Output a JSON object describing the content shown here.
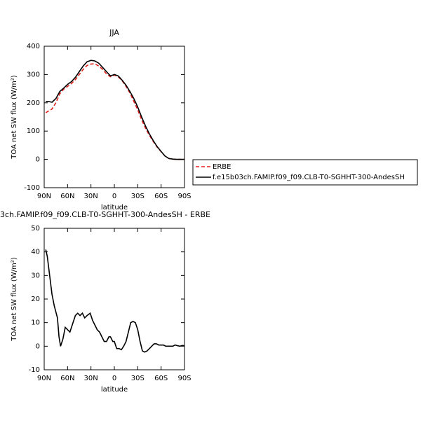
{
  "chart_data": [
    {
      "type": "line",
      "title": "JJA",
      "ylabel": "TOA net SW flux (W/m²)",
      "xlabel": "latitude",
      "x": [
        88,
        85,
        80,
        75,
        70,
        65,
        60,
        55,
        50,
        45,
        40,
        35,
        30,
        25,
        20,
        15,
        10,
        5,
        0,
        -5,
        -10,
        -15,
        -20,
        -25,
        -30,
        -35,
        -40,
        -45,
        -50,
        -55,
        -60,
        -65,
        -70,
        -75,
        -80,
        -85,
        -90
      ],
      "series": [
        {
          "name": "ERBE",
          "color": "#e0201b",
          "linestyle": "dashed",
          "values": [
            165,
            170,
            178,
            200,
            232,
            248,
            258,
            268,
            282,
            300,
            318,
            332,
            337,
            338,
            330,
            318,
            302,
            292,
            298,
            292,
            278,
            258,
            235,
            205,
            175,
            140,
            110,
            85,
            63,
            43,
            27,
            12,
            3,
            1,
            0,
            0,
            0
          ]
        },
        {
          "name": "f.e15b03ch.FAMIP.f09_f09.CLB-T0-SGHHT-300-AndesSH",
          "color": "#000000",
          "linestyle": "solid",
          "values": [
            205,
            205,
            202,
            215,
            240,
            252,
            265,
            275,
            290,
            310,
            330,
            345,
            350,
            348,
            340,
            325,
            310,
            295,
            300,
            295,
            280,
            262,
            240,
            215,
            185,
            150,
            118,
            90,
            66,
            45,
            28,
            12,
            3,
            1,
            0,
            0,
            0
          ]
        }
      ],
      "xlim": [
        90,
        -90
      ],
      "ylim": [
        -100,
        400
      ],
      "xticks": [
        {
          "value": 90,
          "label": "90N"
        },
        {
          "value": 60,
          "label": "60N"
        },
        {
          "value": 30,
          "label": "30N"
        },
        0,
        {
          "value": -30,
          "label": "30S"
        },
        {
          "value": -60,
          "label": "60S"
        },
        {
          "value": -90,
          "label": "90S"
        }
      ],
      "yticks": [
        -100,
        0,
        100,
        200,
        300,
        400
      ],
      "legend": "right"
    },
    {
      "type": "line",
      "title": "3ch.FAMIP.f09_f09.CLB-T0-SGHHT-300-AndesSH - ERBE",
      "ylabel": "TOA net SW flux (W/m²)",
      "xlabel": "latitude",
      "x": [
        88,
        86,
        83,
        80,
        77,
        73,
        71,
        69,
        66,
        63,
        60,
        57,
        53,
        50,
        47,
        44,
        41,
        38,
        35,
        31,
        28,
        25,
        22,
        19,
        16,
        13,
        10,
        7,
        5,
        2,
        0,
        -3,
        -6,
        -9,
        -12,
        -15,
        -18,
        -21,
        -24,
        -27,
        -30,
        -33,
        -36,
        -39,
        -42,
        -45,
        -48,
        -51,
        -54,
        -57,
        -60,
        -63,
        -66,
        -69,
        -72,
        -75,
        -78,
        -81,
        -84,
        -87,
        -90
      ],
      "values": [
        41,
        38,
        30,
        22,
        17,
        12,
        4,
        0,
        3,
        8,
        7,
        6,
        10,
        13,
        14,
        13,
        14,
        12,
        13,
        14,
        11,
        9,
        7,
        6,
        4,
        2,
        2,
        4,
        4,
        2,
        2,
        -1,
        -1,
        -1.5,
        0,
        2,
        6,
        10,
        10.5,
        10,
        7,
        2,
        -2,
        -2.5,
        -2,
        -1,
        0,
        1,
        1,
        0.5,
        0.5,
        0.5,
        0,
        0,
        0,
        0,
        0.5,
        0.2,
        0,
        0.3,
        0.2
      ],
      "color": "#000000",
      "xlim": [
        90,
        -90
      ],
      "ylim": [
        -10,
        50
      ],
      "xticks": [
        {
          "value": 90,
          "label": "90N"
        },
        {
          "value": 60,
          "label": "60N"
        },
        {
          "value": 30,
          "label": "30N"
        },
        0,
        {
          "value": -30,
          "label": "30S"
        },
        {
          "value": -60,
          "label": "60S"
        },
        {
          "value": -90,
          "label": "90S"
        }
      ],
      "yticks": [
        -10,
        0,
        10,
        20,
        30,
        40,
        50
      ]
    }
  ]
}
